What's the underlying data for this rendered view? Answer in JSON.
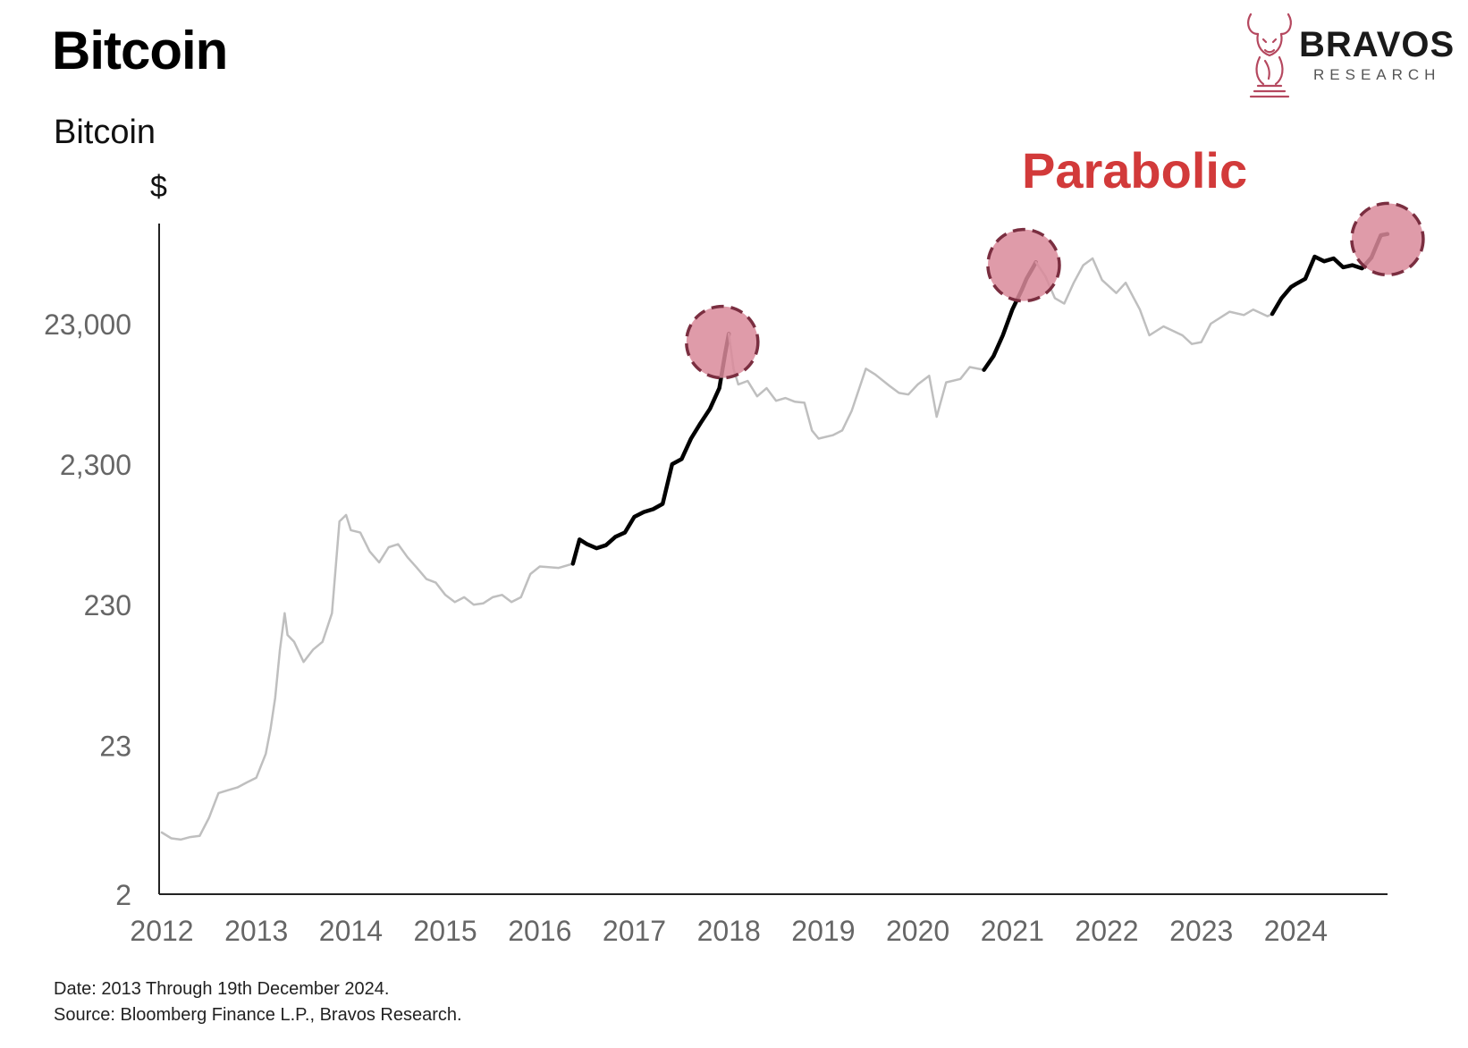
{
  "header": {
    "title": "Bitcoin"
  },
  "logo": {
    "name": "BRAVOS",
    "sub": "RESEARCH",
    "icon": "bull-icon",
    "color": "#b5485f"
  },
  "footer": {
    "line1": "Date: 2013 Through 19th December 2024.",
    "line2": "Source: Bloomberg Finance L.P., Bravos Research."
  },
  "chart_data": {
    "type": "line",
    "subtitle": "Bitcoin",
    "ylabel": "$",
    "scale": "log",
    "yticks": [
      {
        "value": 2,
        "label": "2"
      },
      {
        "value": 23,
        "label": "23"
      },
      {
        "value": 230,
        "label": "230"
      },
      {
        "value": 2300,
        "label": "2,300"
      },
      {
        "value": 23000,
        "label": "23,000"
      }
    ],
    "xticks": [
      "2012",
      "2013",
      "2014",
      "2015",
      "2016",
      "2017",
      "2018",
      "2019",
      "2020",
      "2021",
      "2022",
      "2023",
      "2024"
    ],
    "xlim": [
      2012,
      2025.0
    ],
    "ylim": [
      2,
      230000
    ],
    "grid": false,
    "annotation": {
      "text": "Parabolic",
      "color": "#d23a3a"
    },
    "colors": {
      "base": "#bfbfbf",
      "parabolic": "#000000",
      "circle_fill": "#d9899a",
      "circle_stroke": "#7a2e40"
    },
    "series": [
      {
        "role": "full",
        "points": [
          [
            2012.0,
            5.5
          ],
          [
            2012.1,
            5.0
          ],
          [
            2012.2,
            4.9
          ],
          [
            2012.3,
            5.1
          ],
          [
            2012.4,
            5.2
          ],
          [
            2012.5,
            7.0
          ],
          [
            2012.6,
            10.5
          ],
          [
            2012.7,
            11.0
          ],
          [
            2012.8,
            11.5
          ],
          [
            2012.9,
            12.5
          ],
          [
            2013.0,
            13.5
          ],
          [
            2013.1,
            20.0
          ],
          [
            2013.15,
            30.0
          ],
          [
            2013.2,
            50.0
          ],
          [
            2013.25,
            110.0
          ],
          [
            2013.3,
            200.0
          ],
          [
            2013.33,
            140.0
          ],
          [
            2013.4,
            125.0
          ],
          [
            2013.5,
            90.0
          ],
          [
            2013.6,
            110.0
          ],
          [
            2013.7,
            125.0
          ],
          [
            2013.8,
            200.0
          ],
          [
            2013.88,
            900.0
          ],
          [
            2013.95,
            1000.0
          ],
          [
            2014.0,
            780.0
          ],
          [
            2014.1,
            750.0
          ],
          [
            2014.2,
            550.0
          ],
          [
            2014.3,
            460.0
          ],
          [
            2014.4,
            590.0
          ],
          [
            2014.5,
            620.0
          ],
          [
            2014.6,
            500.0
          ],
          [
            2014.7,
            420.0
          ],
          [
            2014.8,
            350.0
          ],
          [
            2014.9,
            330.0
          ],
          [
            2015.0,
            270.0
          ],
          [
            2015.1,
            240.0
          ],
          [
            2015.2,
            260.0
          ],
          [
            2015.3,
            230.0
          ],
          [
            2015.4,
            235.0
          ],
          [
            2015.5,
            260.0
          ],
          [
            2015.6,
            270.0
          ],
          [
            2015.7,
            240.0
          ],
          [
            2015.8,
            260.0
          ],
          [
            2015.9,
            380.0
          ],
          [
            2016.0,
            430.0
          ],
          [
            2016.2,
            420.0
          ],
          [
            2016.35,
            450.0
          ]
        ]
      },
      {
        "role": "parabolic",
        "points": [
          [
            2016.35,
            450.0
          ],
          [
            2016.42,
            670.0
          ],
          [
            2016.5,
            620.0
          ],
          [
            2016.6,
            580.0
          ],
          [
            2016.7,
            610.0
          ],
          [
            2016.8,
            700.0
          ],
          [
            2016.9,
            750.0
          ],
          [
            2017.0,
            970.0
          ],
          [
            2017.1,
            1050.0
          ],
          [
            2017.2,
            1100.0
          ],
          [
            2017.3,
            1200.0
          ],
          [
            2017.4,
            2300.0
          ],
          [
            2017.5,
            2500.0
          ],
          [
            2017.6,
            3500.0
          ],
          [
            2017.7,
            4500.0
          ],
          [
            2017.8,
            5700.0
          ],
          [
            2017.9,
            8000.0
          ],
          [
            2017.96,
            14000.0
          ],
          [
            2018.0,
            19500.0
          ]
        ]
      },
      {
        "role": "full",
        "points": [
          [
            2018.0,
            19500.0
          ],
          [
            2018.05,
            11000.0
          ],
          [
            2018.1,
            8500.0
          ],
          [
            2018.2,
            9000.0
          ],
          [
            2018.3,
            7000.0
          ],
          [
            2018.4,
            8000.0
          ],
          [
            2018.5,
            6500.0
          ],
          [
            2018.6,
            6800.0
          ],
          [
            2018.7,
            6400.0
          ],
          [
            2018.8,
            6300.0
          ],
          [
            2018.88,
            4000.0
          ],
          [
            2018.95,
            3500.0
          ],
          [
            2019.1,
            3700.0
          ],
          [
            2019.2,
            4000.0
          ],
          [
            2019.3,
            5500.0
          ],
          [
            2019.45,
            11000.0
          ],
          [
            2019.55,
            10000.0
          ],
          [
            2019.7,
            8300.0
          ],
          [
            2019.8,
            7400.0
          ],
          [
            2019.9,
            7200.0
          ],
          [
            2020.0,
            8500.0
          ],
          [
            2020.12,
            9800.0
          ],
          [
            2020.2,
            5000.0
          ],
          [
            2020.3,
            8800.0
          ],
          [
            2020.45,
            9300.0
          ],
          [
            2020.55,
            11300.0
          ],
          [
            2020.7,
            10800.0
          ]
        ]
      },
      {
        "role": "parabolic",
        "points": [
          [
            2020.7,
            10800.0
          ],
          [
            2020.8,
            13500.0
          ],
          [
            2020.9,
            19000.0
          ],
          [
            2021.0,
            29000.0
          ],
          [
            2021.1,
            40000.0
          ],
          [
            2021.15,
            48000.0
          ],
          [
            2021.22,
            58000.0
          ],
          [
            2021.25,
            63000.0
          ]
        ]
      },
      {
        "role": "full",
        "points": [
          [
            2021.25,
            63000.0
          ],
          [
            2021.35,
            50000.0
          ],
          [
            2021.45,
            35000.0
          ],
          [
            2021.55,
            32000.0
          ],
          [
            2021.65,
            45000.0
          ],
          [
            2021.75,
            60000.0
          ],
          [
            2021.85,
            67000.0
          ],
          [
            2021.95,
            47000.0
          ],
          [
            2022.1,
            38000.0
          ],
          [
            2022.2,
            45000.0
          ],
          [
            2022.35,
            29000.0
          ],
          [
            2022.45,
            19000.0
          ],
          [
            2022.6,
            22000.0
          ],
          [
            2022.8,
            19000.0
          ],
          [
            2022.9,
            16500.0
          ],
          [
            2023.0,
            17000.0
          ],
          [
            2023.1,
            23000.0
          ],
          [
            2023.3,
            28000.0
          ],
          [
            2023.45,
            26500.0
          ],
          [
            2023.55,
            29000.0
          ],
          [
            2023.7,
            26000.0
          ],
          [
            2023.75,
            27000.0
          ]
        ]
      },
      {
        "role": "parabolic",
        "points": [
          [
            2023.75,
            27000.0
          ],
          [
            2023.85,
            35000.0
          ],
          [
            2023.95,
            42000.0
          ],
          [
            2024.0,
            44000.0
          ],
          [
            2024.1,
            48000.0
          ],
          [
            2024.2,
            69000.0
          ],
          [
            2024.3,
            64000.0
          ],
          [
            2024.4,
            67000.0
          ],
          [
            2024.5,
            58000.0
          ],
          [
            2024.6,
            60000.0
          ],
          [
            2024.7,
            57000.0
          ],
          [
            2024.8,
            68000.0
          ],
          [
            2024.9,
            98000.0
          ],
          [
            2024.97,
            100000.0
          ]
        ]
      }
    ],
    "highlights": [
      {
        "x": 2017.93,
        "y": 17000
      },
      {
        "x": 2021.12,
        "y": 60000
      },
      {
        "x": 2024.97,
        "y": 92000
      }
    ]
  }
}
